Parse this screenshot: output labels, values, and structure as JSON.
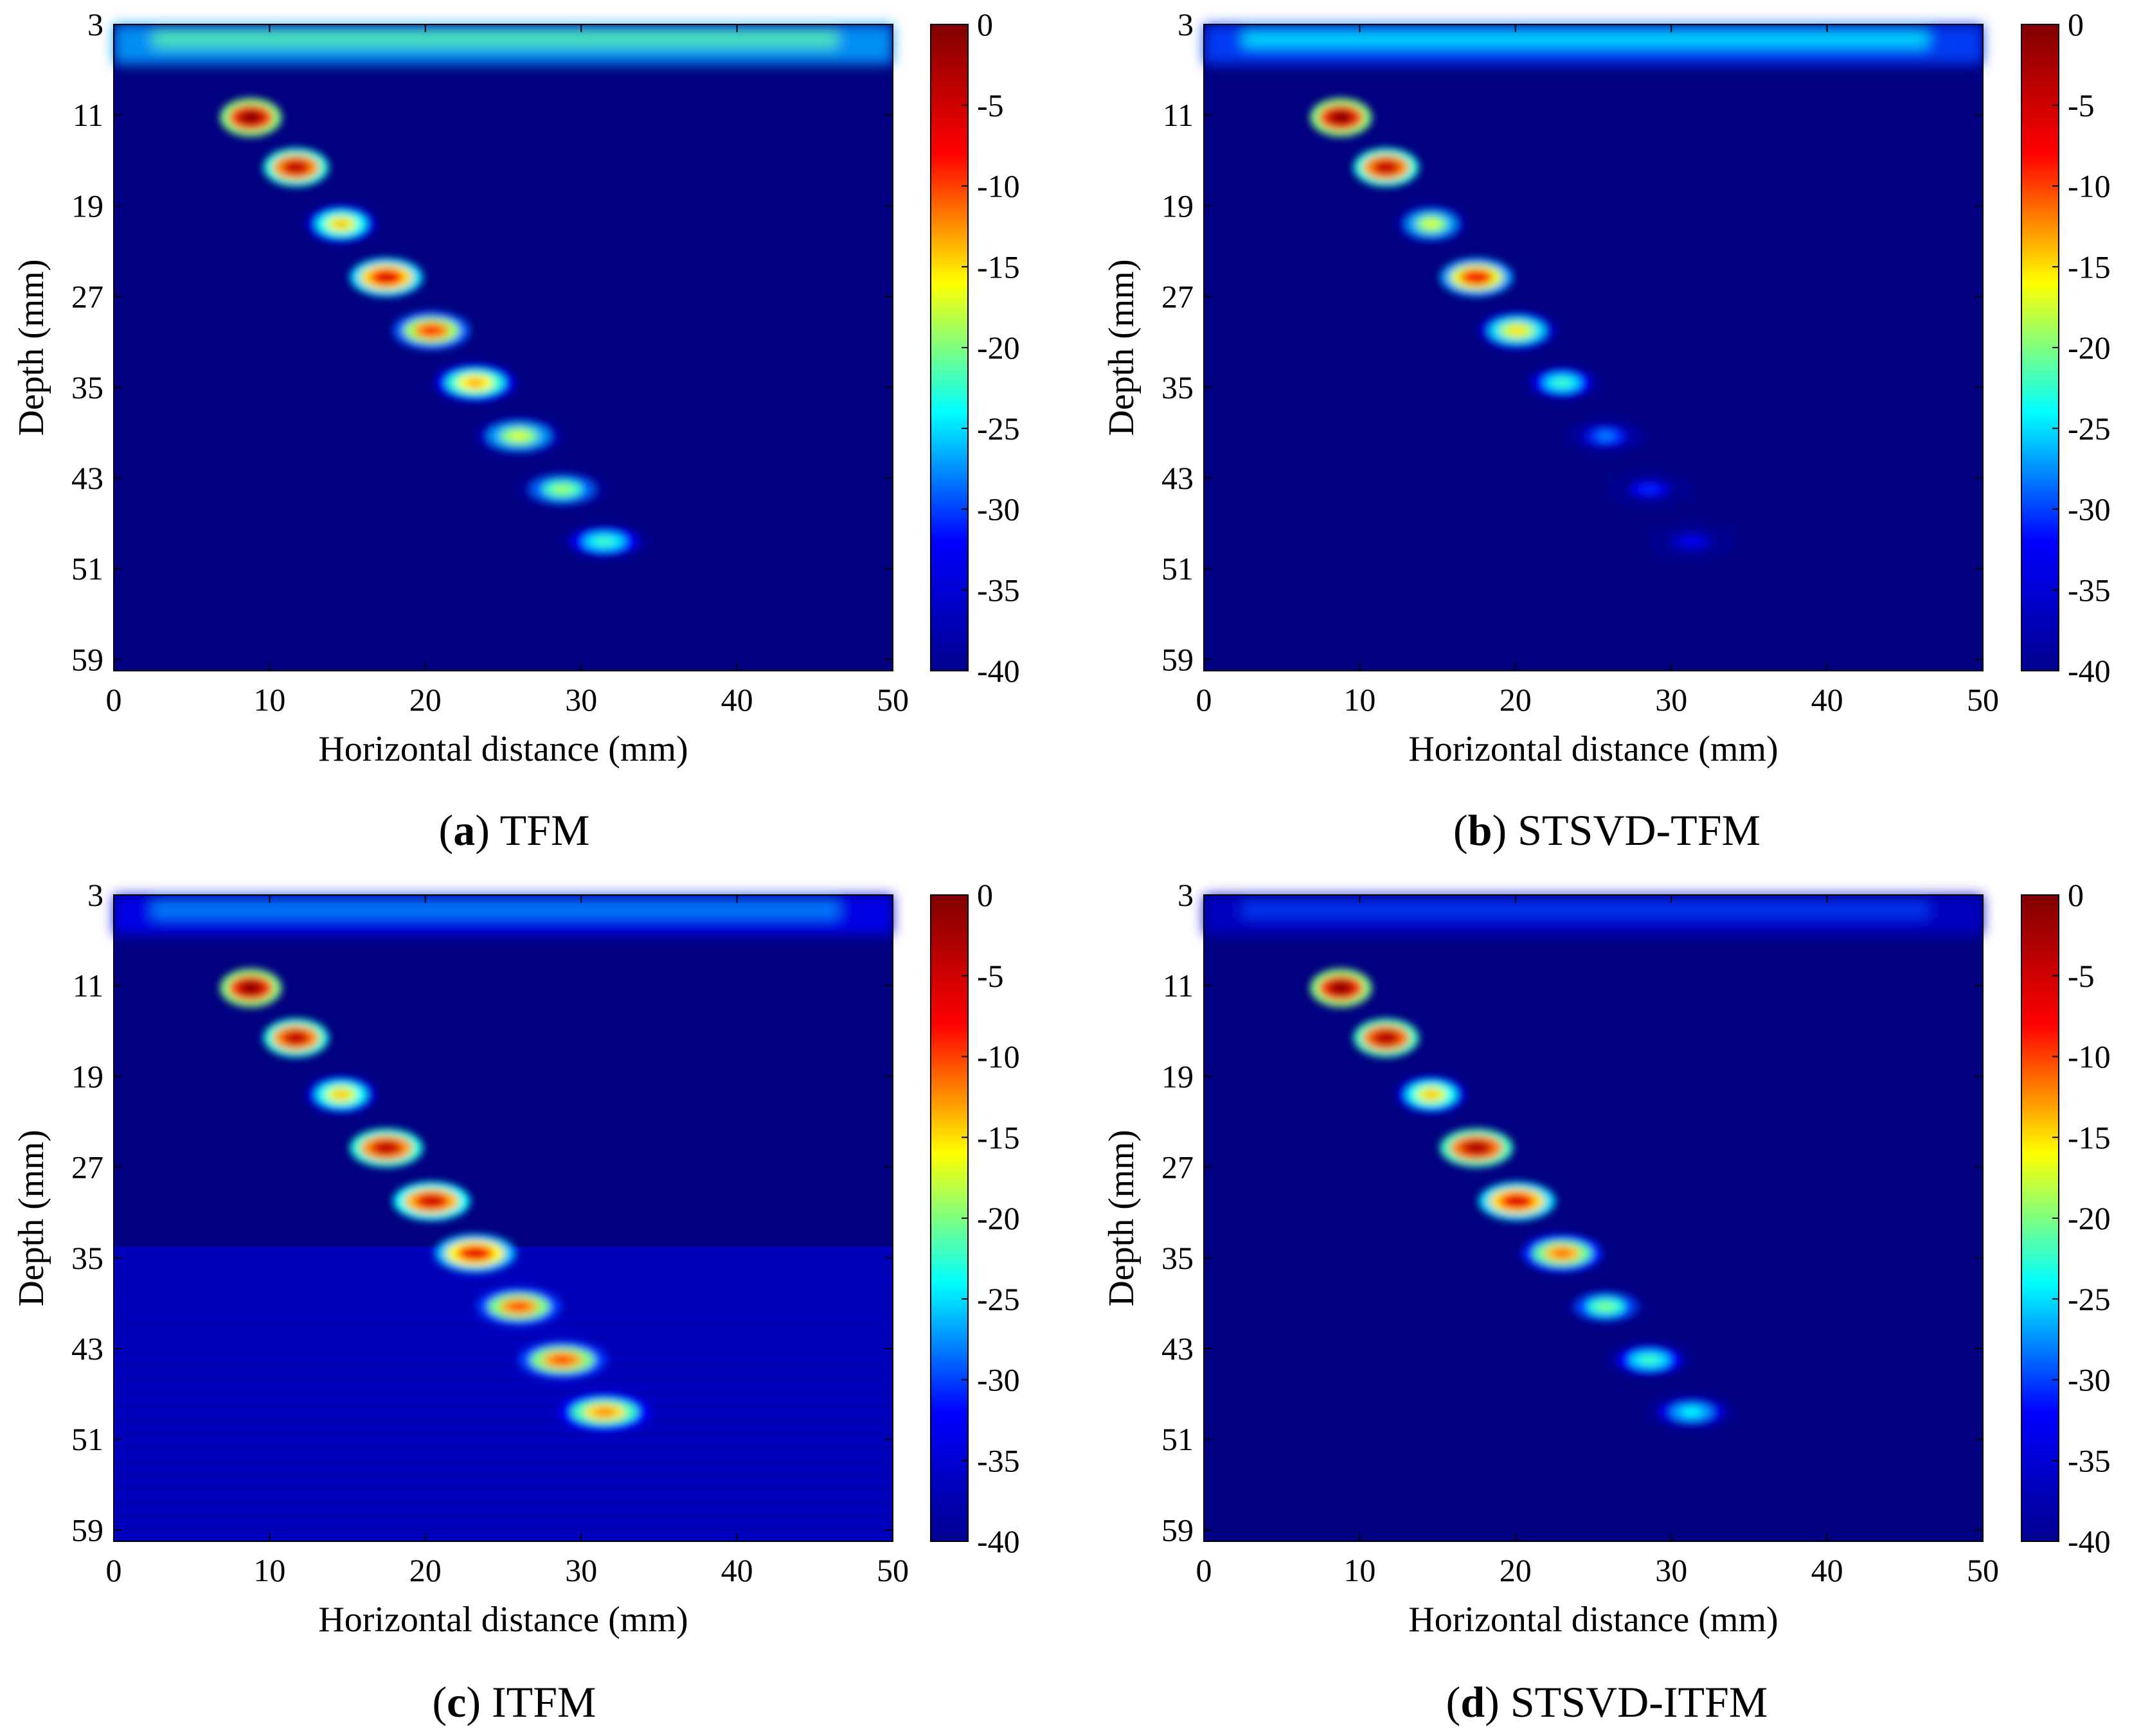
{
  "figure": {
    "colormap": "jet",
    "colormap_stops": [
      "#00008f",
      "#0000ff",
      "#00ffff",
      "#ffff00",
      "#ff0000",
      "#800000"
    ],
    "background_color": "#000080"
  },
  "chart_data": [
    {
      "type": "heatmap",
      "panel_letter": "a",
      "caption": "TFM",
      "xlabel": "Horizontal distance (mm)",
      "ylabel": "Depth (mm)",
      "xlim": [
        0,
        50
      ],
      "ylim": [
        3,
        60
      ],
      "xticks": [
        "0",
        "10",
        "20",
        "30",
        "40",
        "50"
      ],
      "yticks": [
        "3",
        "11",
        "19",
        "27",
        "35",
        "43",
        "51",
        "59"
      ],
      "colorbar": {
        "range": [
          -40,
          0
        ],
        "ticks": [
          "0",
          "-5",
          "-10",
          "-15",
          "-20",
          "-25",
          "-30",
          "-35",
          "-40"
        ]
      },
      "near_surface_noise_db": -27,
      "deep_haze_db": null,
      "defects": [
        {
          "x": 8.8,
          "depth": 11.2,
          "peak_db": 0
        },
        {
          "x": 11.7,
          "depth": 15.6,
          "peak_db": -3
        },
        {
          "x": 14.6,
          "depth": 20.6,
          "peak_db": -14
        },
        {
          "x": 17.5,
          "depth": 25.3,
          "peak_db": -5
        },
        {
          "x": 20.4,
          "depth": 30.0,
          "peak_db": -9
        },
        {
          "x": 23.2,
          "depth": 34.6,
          "peak_db": -13
        },
        {
          "x": 26.0,
          "depth": 39.3,
          "peak_db": -17
        },
        {
          "x": 28.8,
          "depth": 44.0,
          "peak_db": -19
        },
        {
          "x": 31.5,
          "depth": 48.6,
          "peak_db": -22
        }
      ]
    },
    {
      "type": "heatmap",
      "panel_letter": "b",
      "caption": "STSVD-TFM",
      "xlabel": "Horizontal distance (mm)",
      "ylabel": "Depth (mm)",
      "xlim": [
        0,
        50
      ],
      "ylim": [
        3,
        60
      ],
      "xticks": [
        "0",
        "10",
        "20",
        "30",
        "40",
        "50"
      ],
      "yticks": [
        "3",
        "11",
        "19",
        "27",
        "35",
        "43",
        "51",
        "59"
      ],
      "colorbar": {
        "range": [
          -40,
          0
        ],
        "ticks": [
          "0",
          "-5",
          "-10",
          "-15",
          "-20",
          "-25",
          "-30",
          "-35",
          "-40"
        ]
      },
      "near_surface_noise_db": -30,
      "deep_haze_db": null,
      "defects": [
        {
          "x": 8.8,
          "depth": 11.2,
          "peak_db": 0
        },
        {
          "x": 11.7,
          "depth": 15.6,
          "peak_db": -3
        },
        {
          "x": 14.6,
          "depth": 20.6,
          "peak_db": -17
        },
        {
          "x": 17.5,
          "depth": 25.3,
          "peak_db": -7
        },
        {
          "x": 20.1,
          "depth": 30.0,
          "peak_db": -15
        },
        {
          "x": 23.0,
          "depth": 34.6,
          "peak_db": -22
        },
        {
          "x": 25.8,
          "depth": 39.3,
          "peak_db": -28
        },
        {
          "x": 28.6,
          "depth": 44.0,
          "peak_db": -31
        },
        {
          "x": 31.3,
          "depth": 48.6,
          "peak_db": -33
        }
      ]
    },
    {
      "type": "heatmap",
      "panel_letter": "c",
      "caption": "ITFM",
      "xlabel": "Horizontal distance (mm)",
      "ylabel": "Depth (mm)",
      "xlim": [
        0,
        50
      ],
      "ylim": [
        3,
        60
      ],
      "xticks": [
        "0",
        "10",
        "20",
        "30",
        "40",
        "50"
      ],
      "yticks": [
        "3",
        "11",
        "19",
        "27",
        "35",
        "43",
        "51",
        "59"
      ],
      "colorbar": {
        "range": [
          -40,
          0
        ],
        "ticks": [
          "0",
          "-5",
          "-10",
          "-15",
          "-20",
          "-25",
          "-30",
          "-35",
          "-40"
        ]
      },
      "near_surface_noise_db": -33,
      "deep_haze_db": -36,
      "defects": [
        {
          "x": 8.8,
          "depth": 11.2,
          "peak_db": 0
        },
        {
          "x": 11.7,
          "depth": 15.6,
          "peak_db": -3
        },
        {
          "x": 14.6,
          "depth": 20.6,
          "peak_db": -14
        },
        {
          "x": 17.5,
          "depth": 25.3,
          "peak_db": -3
        },
        {
          "x": 20.4,
          "depth": 30.0,
          "peak_db": -4
        },
        {
          "x": 23.2,
          "depth": 34.6,
          "peak_db": -6
        },
        {
          "x": 26.0,
          "depth": 39.3,
          "peak_db": -10
        },
        {
          "x": 28.8,
          "depth": 44.0,
          "peak_db": -10
        },
        {
          "x": 31.5,
          "depth": 48.6,
          "peak_db": -12
        }
      ]
    },
    {
      "type": "heatmap",
      "panel_letter": "d",
      "caption": "STSVD-ITFM",
      "xlabel": "Horizontal distance (mm)",
      "ylabel": "Depth (mm)",
      "xlim": [
        0,
        50
      ],
      "ylim": [
        3,
        60
      ],
      "xticks": [
        "0",
        "10",
        "20",
        "30",
        "40",
        "50"
      ],
      "yticks": [
        "3",
        "11",
        "19",
        "27",
        "35",
        "43",
        "51",
        "59"
      ],
      "colorbar": {
        "range": [
          -40,
          0
        ],
        "ticks": [
          "0",
          "-5",
          "-10",
          "-15",
          "-20",
          "-25",
          "-30",
          "-35",
          "-40"
        ]
      },
      "near_surface_noise_db": -36,
      "deep_haze_db": null,
      "defects": [
        {
          "x": 8.8,
          "depth": 11.2,
          "peak_db": 0
        },
        {
          "x": 11.7,
          "depth": 15.6,
          "peak_db": -2
        },
        {
          "x": 14.6,
          "depth": 20.6,
          "peak_db": -14
        },
        {
          "x": 17.5,
          "depth": 25.3,
          "peak_db": -2
        },
        {
          "x": 20.1,
          "depth": 30.0,
          "peak_db": -5
        },
        {
          "x": 23.0,
          "depth": 34.6,
          "peak_db": -11
        },
        {
          "x": 25.8,
          "depth": 39.3,
          "peak_db": -20
        },
        {
          "x": 28.6,
          "depth": 44.0,
          "peak_db": -22
        },
        {
          "x": 31.3,
          "depth": 48.6,
          "peak_db": -24
        }
      ]
    }
  ]
}
